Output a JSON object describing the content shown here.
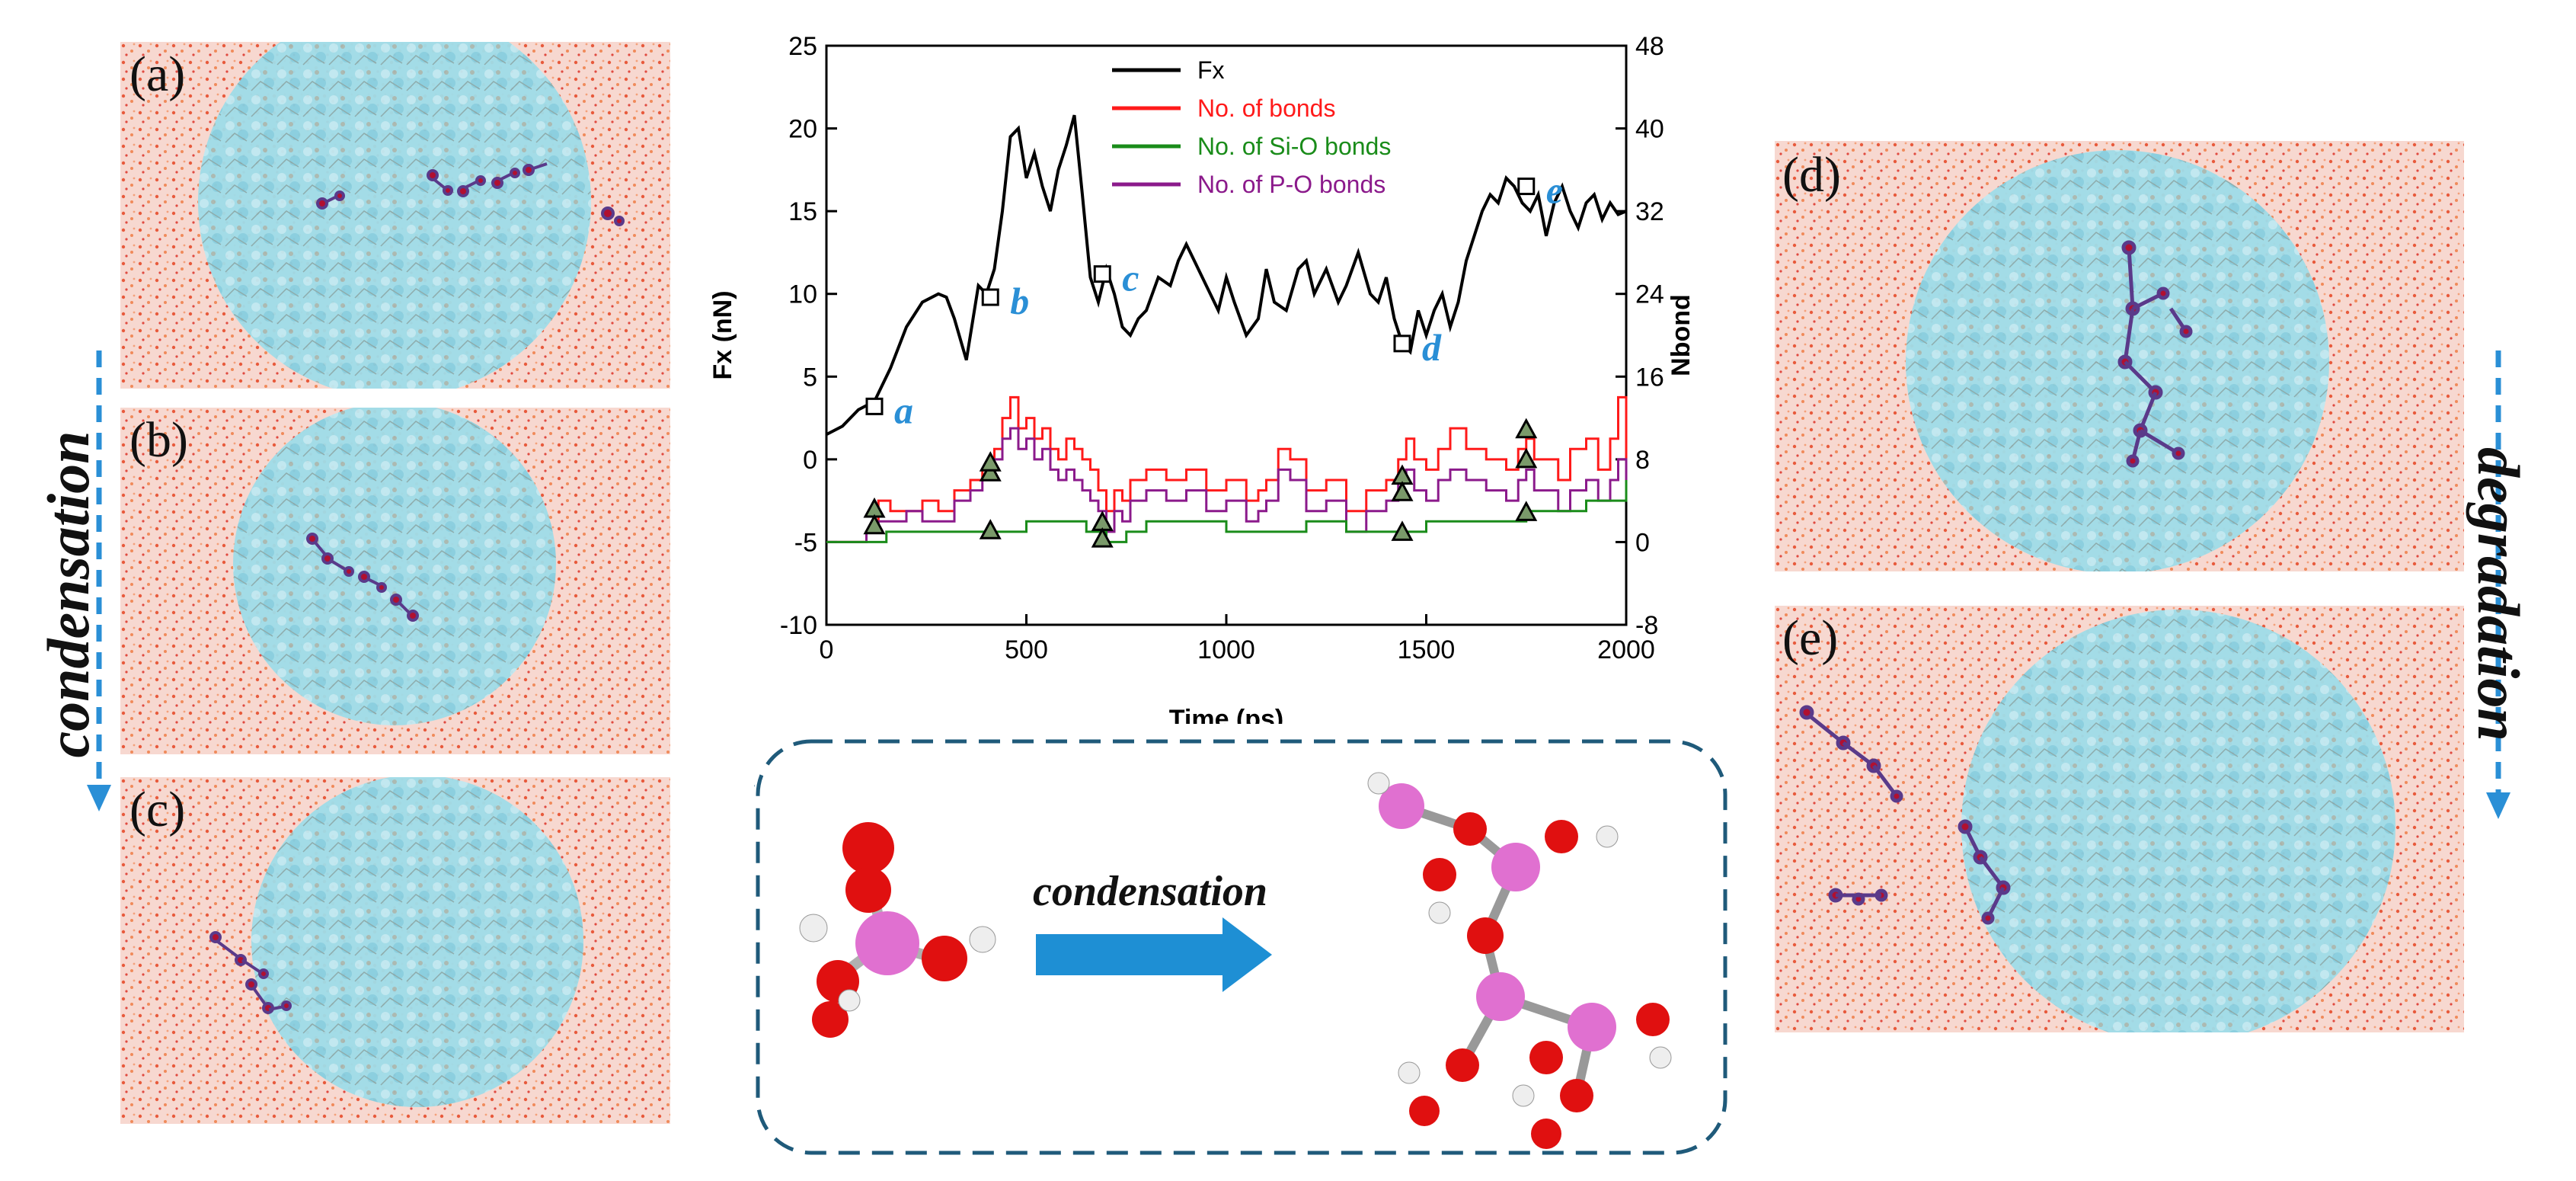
{
  "panel_labels": {
    "a": "(a)",
    "b": "(b)",
    "c": "(c)",
    "d": "(d)",
    "e": "(e)"
  },
  "side_labels": {
    "left": "condensation",
    "right": "degradation"
  },
  "inset": {
    "arrow_label": "condensation"
  },
  "colors": {
    "fx": "#000000",
    "bonds": "#ff1a1a",
    "sio": "#1a8c1a",
    "po": "#8b1a8b",
    "accent_blue": "#2a8fd6",
    "inset_border": "#1f5a7a",
    "droplet": "#8fd8e8",
    "water": "#f4c4b8"
  },
  "chart_data": {
    "type": "line",
    "xlabel": "Time (ps)",
    "ylabel": "Fx (nN)",
    "y2label": "Nbond",
    "xlim": [
      0,
      2000
    ],
    "ylim": [
      -10,
      25
    ],
    "y2lim": [
      -8,
      48
    ],
    "xticks": [
      0,
      500,
      1000,
      1500,
      2000
    ],
    "yticks": [
      -10,
      -5,
      0,
      5,
      10,
      15,
      20,
      25
    ],
    "y2ticks": [
      -8,
      0,
      8,
      16,
      24,
      32,
      40,
      48
    ],
    "legend": [
      "Fx",
      "No. of bonds",
      "No. of Si-O bonds",
      "No. of P-O bonds"
    ],
    "series": [
      {
        "name": "Fx",
        "axis": "left",
        "x": [
          0,
          40,
          80,
          120,
          160,
          200,
          240,
          280,
          300,
          320,
          350,
          380,
          400,
          420,
          440,
          460,
          480,
          500,
          520,
          540,
          560,
          580,
          600,
          620,
          640,
          660,
          680,
          700,
          720,
          740,
          760,
          780,
          800,
          830,
          860,
          880,
          900,
          920,
          950,
          980,
          1000,
          1020,
          1050,
          1080,
          1100,
          1120,
          1150,
          1180,
          1200,
          1220,
          1250,
          1280,
          1300,
          1330,
          1360,
          1380,
          1400,
          1420,
          1440,
          1460,
          1480,
          1500,
          1520,
          1540,
          1560,
          1580,
          1600,
          1620,
          1640,
          1660,
          1680,
          1700,
          1720,
          1740,
          1760,
          1780,
          1800,
          1820,
          1840,
          1860,
          1880,
          1900,
          1920,
          1940,
          1960,
          1980,
          2000
        ],
        "y": [
          1.5,
          2.0,
          3.0,
          3.5,
          5.5,
          8.0,
          9.5,
          10.0,
          9.8,
          8.5,
          6.0,
          10.5,
          10.0,
          11.5,
          15.0,
          19.5,
          20.0,
          17.0,
          18.5,
          16.5,
          15.0,
          17.5,
          19.0,
          20.8,
          16.0,
          11.0,
          9.5,
          11.5,
          10.0,
          8.0,
          7.5,
          8.5,
          9.0,
          11.0,
          10.5,
          12.0,
          13.0,
          12.0,
          10.5,
          9.0,
          11.0,
          9.5,
          7.5,
          8.5,
          11.5,
          9.5,
          9.0,
          11.5,
          12.0,
          10.0,
          11.5,
          9.5,
          10.5,
          12.5,
          10.0,
          9.5,
          11.0,
          8.5,
          7.0,
          6.5,
          9.0,
          7.5,
          9.0,
          10.0,
          8.0,
          9.5,
          12.0,
          13.5,
          15.0,
          16.0,
          15.5,
          17.0,
          16.5,
          15.5,
          15.0,
          16.0,
          13.5,
          15.5,
          16.5,
          15.0,
          14.0,
          15.5,
          16.0,
          14.5,
          15.5,
          14.8,
          15.0
        ]
      },
      {
        "name": "No. of bonds",
        "axis": "right",
        "x": [
          0,
          60,
          100,
          130,
          160,
          200,
          240,
          280,
          320,
          360,
          390,
          420,
          440,
          460,
          480,
          500,
          520,
          540,
          560,
          580,
          600,
          620,
          640,
          660,
          680,
          700,
          720,
          740,
          760,
          800,
          850,
          900,
          950,
          1000,
          1050,
          1080,
          1100,
          1130,
          1160,
          1200,
          1250,
          1300,
          1350,
          1400,
          1430,
          1450,
          1470,
          1500,
          1530,
          1560,
          1600,
          1650,
          1700,
          1730,
          1750,
          1770,
          1800,
          1830,
          1860,
          1900,
          1930,
          1960,
          1980,
          2000
        ],
        "y": [
          0,
          0,
          1,
          4,
          3,
          3,
          4,
          3,
          5,
          6,
          7,
          9,
          12,
          14,
          11,
          12,
          10,
          11,
          9,
          8,
          10,
          9,
          8,
          7,
          5,
          3,
          5,
          4,
          6,
          7,
          6,
          7,
          5,
          6,
          4,
          5,
          6,
          9,
          8,
          5,
          6,
          3,
          5,
          6,
          8,
          10,
          8,
          7,
          9,
          11,
          9,
          8,
          7,
          9,
          10,
          8,
          8,
          6,
          9,
          10,
          7,
          10,
          14,
          8
        ]
      },
      {
        "name": "No. of P-O bonds",
        "axis": "right",
        "x": [
          0,
          60,
          100,
          130,
          160,
          200,
          240,
          280,
          320,
          360,
          390,
          420,
          440,
          460,
          480,
          500,
          520,
          540,
          560,
          580,
          600,
          620,
          640,
          660,
          680,
          700,
          720,
          740,
          760,
          800,
          850,
          900,
          950,
          1000,
          1050,
          1080,
          1100,
          1130,
          1160,
          1200,
          1250,
          1300,
          1350,
          1400,
          1430,
          1450,
          1470,
          1500,
          1530,
          1560,
          1600,
          1650,
          1700,
          1730,
          1750,
          1770,
          1800,
          1830,
          1860,
          1900,
          1930,
          1960,
          1980,
          2000
        ],
        "y": [
          0,
          0,
          1,
          2,
          2,
          3,
          2,
          2,
          4,
          5,
          6,
          8,
          10,
          11,
          9,
          10,
          8,
          9,
          7,
          6,
          7,
          6,
          5,
          4,
          3,
          1,
          3,
          2,
          4,
          5,
          4,
          5,
          3,
          4,
          2,
          3,
          4,
          7,
          6,
          3,
          4,
          1,
          3,
          4,
          6,
          7,
          5,
          4,
          6,
          7,
          6,
          5,
          4,
          6,
          7,
          5,
          5,
          3,
          5,
          6,
          4,
          6,
          8,
          5
        ]
      },
      {
        "name": "No. of Si-O bonds",
        "axis": "right",
        "x": [
          0,
          100,
          150,
          200,
          300,
          400,
          450,
          500,
          600,
          650,
          700,
          750,
          800,
          900,
          1000,
          1100,
          1200,
          1300,
          1400,
          1500,
          1600,
          1700,
          1750,
          1800,
          1900,
          2000
        ],
        "y": [
          0,
          0,
          1,
          1,
          1,
          1,
          1,
          2,
          2,
          1,
          0,
          1,
          2,
          2,
          1,
          1,
          2,
          1,
          1,
          2,
          2,
          2,
          3,
          3,
          4,
          6
        ]
      }
    ],
    "markers": [
      {
        "label": "a",
        "x": 120,
        "y": 3.2
      },
      {
        "label": "b",
        "x": 410,
        "y": 9.8
      },
      {
        "label": "c",
        "x": 690,
        "y": 11.2
      },
      {
        "label": "d",
        "x": 1440,
        "y": 7.0
      },
      {
        "label": "e",
        "x": 1750,
        "y": 16.5
      }
    ],
    "triangles": [
      {
        "x": 120,
        "y": -3.0
      },
      {
        "x": 120,
        "y": -4.0
      },
      {
        "x": 410,
        "y": -0.8
      },
      {
        "x": 410,
        "y": -0.2
      },
      {
        "x": 410,
        "y": -4.3
      },
      {
        "x": 690,
        "y": -3.8
      },
      {
        "x": 690,
        "y": -4.8
      },
      {
        "x": 1440,
        "y": -1.0
      },
      {
        "x": 1440,
        "y": -2.0
      },
      {
        "x": 1440,
        "y": -4.4
      },
      {
        "x": 1750,
        "y": 1.8
      },
      {
        "x": 1750,
        "y": 0.0
      },
      {
        "x": 1750,
        "y": -3.2
      }
    ]
  }
}
